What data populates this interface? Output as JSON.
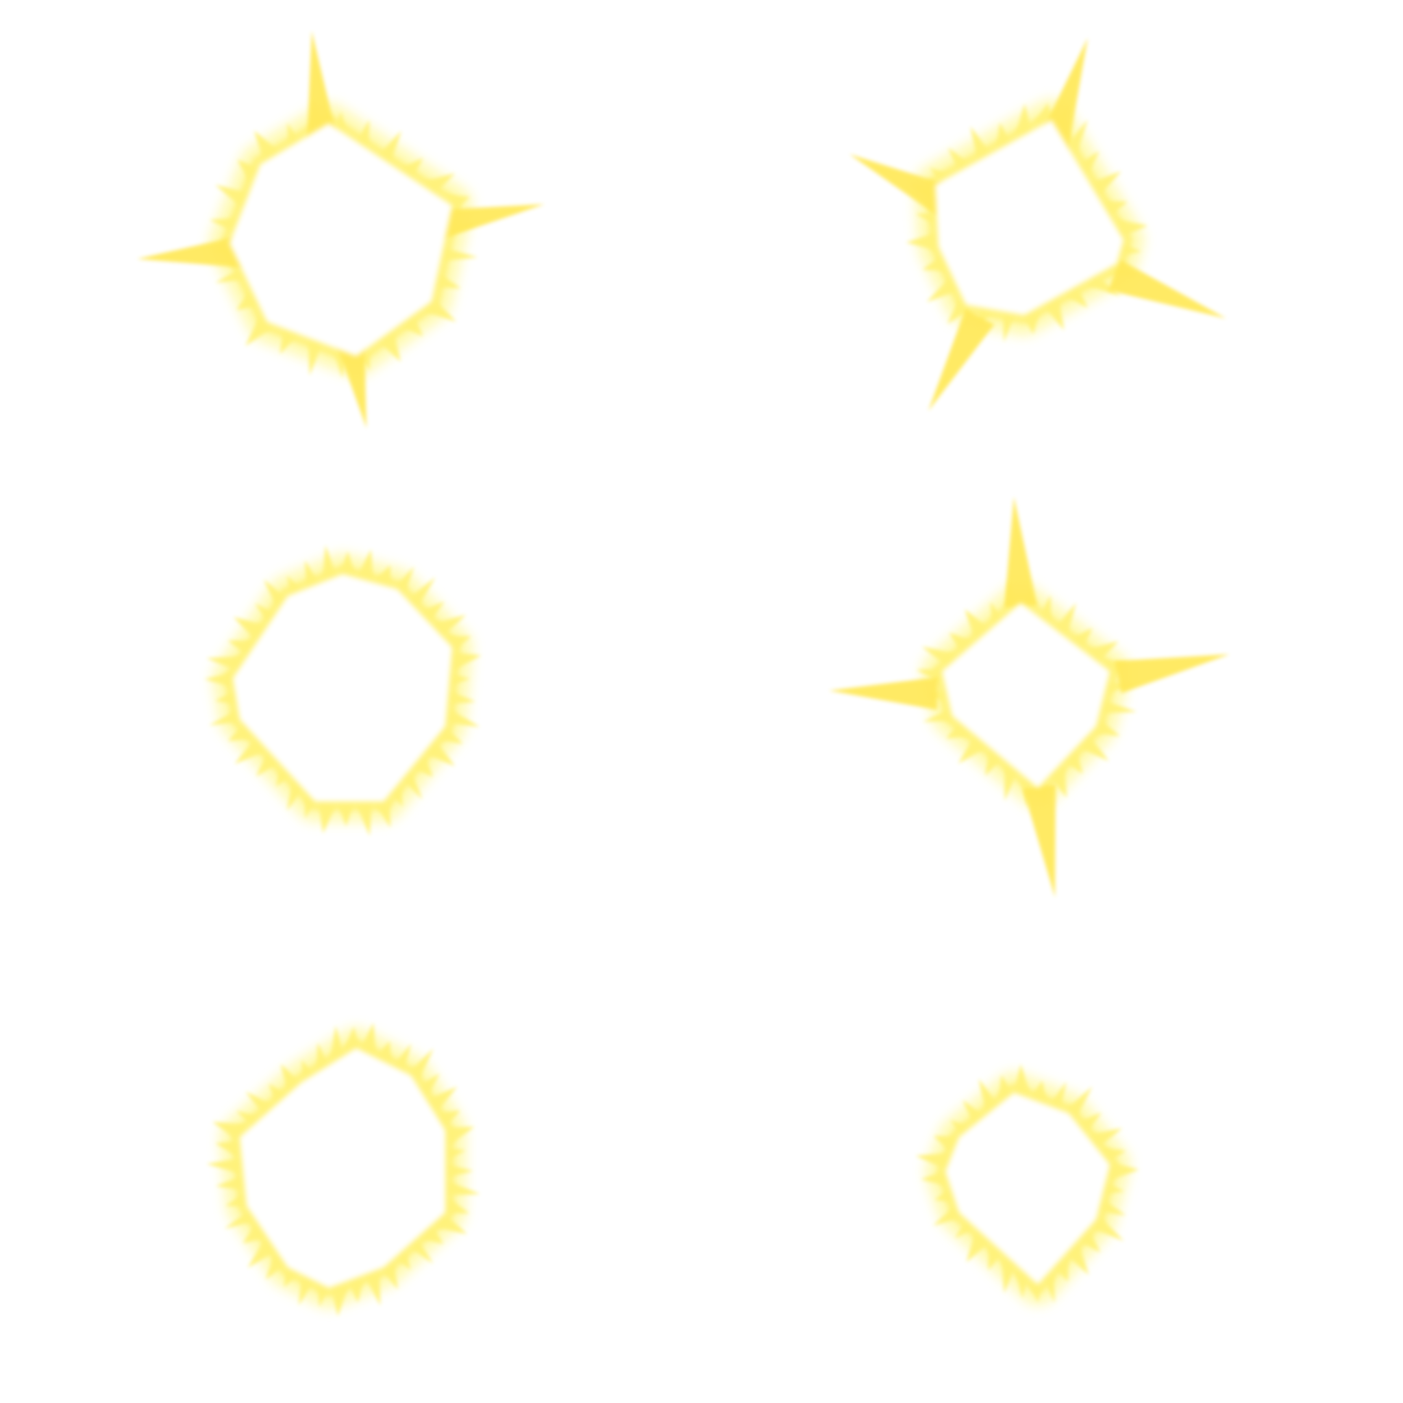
{
  "sprite_sheet": {
    "background_color": "#ffffff",
    "glow_colors": {
      "outer": "#fff9a6",
      "mid": "#fff27a",
      "ray": "#ffe95c"
    },
    "frames": [
      {
        "row": 1,
        "column": 1,
        "effect": "sparkle-burst",
        "long_rays": 4
      },
      {
        "row": 1,
        "column": 2,
        "effect": "sparkle-burst",
        "long_rays": 4
      },
      {
        "row": 2,
        "column": 1,
        "effect": "spiky-halo",
        "long_rays": 0
      },
      {
        "row": 2,
        "column": 2,
        "effect": "sparkle-burst",
        "long_rays": 4
      },
      {
        "row": 3,
        "column": 1,
        "effect": "spiky-halo",
        "long_rays": 0
      },
      {
        "row": 3,
        "column": 2,
        "effect": "spiky-halo",
        "long_rays": 0
      }
    ]
  }
}
